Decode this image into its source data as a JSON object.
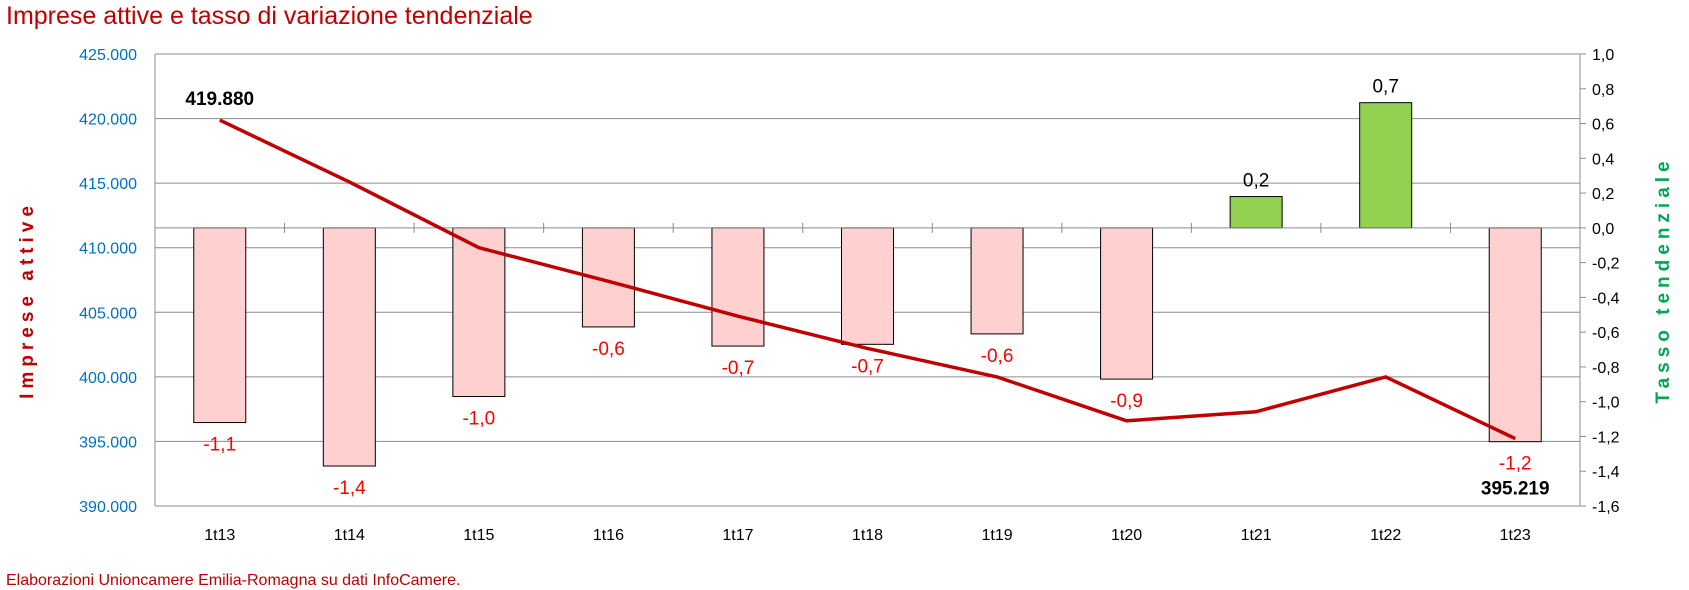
{
  "chart_data": {
    "type": "bar+line",
    "title": "Imprese attive e tasso di variazione tendenziale",
    "source": "Elaborazioni Unioncamere Emilia-Romagna su dati InfoCamere.",
    "ylabel_left": "Imprese attive",
    "ylabel_right": "Tasso tendenziale",
    "categories": [
      "1t13",
      "1t14",
      "1t15",
      "1t16",
      "1t17",
      "1t18",
      "1t19",
      "1t20",
      "1t21",
      "1t22",
      "1t23"
    ],
    "left_axis": {
      "ylim": [
        390000,
        425000
      ],
      "ticks": [
        390000,
        395000,
        400000,
        405000,
        410000,
        415000,
        420000,
        425000
      ],
      "tick_labels": [
        "390.000",
        "395.000",
        "400.000",
        "405.000",
        "410.000",
        "415.000",
        "420.000",
        "425.000"
      ]
    },
    "right_axis": {
      "ylim": [
        -1.6,
        1.0
      ],
      "ticks": [
        -1.6,
        -1.4,
        -1.2,
        -1.0,
        -0.8,
        -0.6,
        -0.4,
        -0.2,
        0.0,
        0.2,
        0.4,
        0.6,
        0.8,
        1.0
      ],
      "tick_labels": [
        "-1,6",
        "-1,4",
        "-1,2",
        "-1,0",
        "-0,8",
        "-0,6",
        "-0,4",
        "-0,2",
        "0,0",
        "0,2",
        "0,4",
        "0,6",
        "0,8",
        "1,0"
      ]
    },
    "series": [
      {
        "name": "Tasso tendenziale",
        "type": "bar",
        "axis": "right",
        "values": [
          -1.12,
          -1.37,
          -0.97,
          -0.57,
          -0.68,
          -0.67,
          -0.61,
          -0.87,
          0.18,
          0.72,
          -1.23
        ],
        "labels": [
          "-1,1",
          "-1,4",
          "-1,0",
          "-0,6",
          "-0,7",
          "-0,7",
          "-0,6",
          "-0,9",
          "0,2",
          "0,7",
          "-1,2"
        ],
        "negative_color": "#ffd0d0",
        "positive_color": "#92d050"
      },
      {
        "name": "Imprese attive",
        "type": "line",
        "axis": "left",
        "values": [
          419880,
          415100,
          410000,
          407400,
          404700,
          402200,
          400000,
          396600,
          397300,
          400000,
          395219
        ],
        "point_labels": {
          "0": "419.880",
          "10": "395.219"
        },
        "color": "#c00000"
      }
    ],
    "grid": true,
    "legend": "none"
  }
}
